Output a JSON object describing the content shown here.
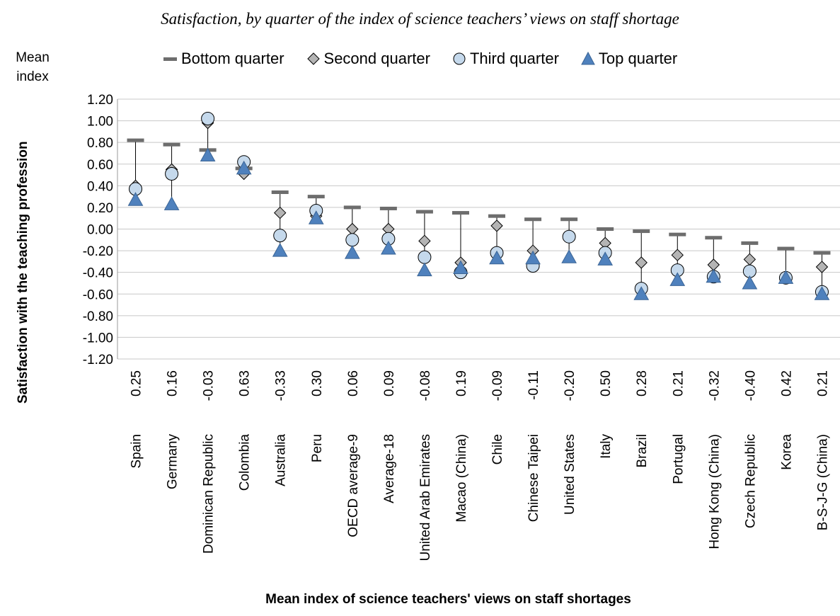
{
  "chart_data": {
    "type": "scatter",
    "title": "Satisfaction, by quarter of the index of science teachers’ views on staff shortage",
    "unit_label_line1": "Mean",
    "unit_label_line2": "index",
    "ylabel": "Satisfaction with the teaching profession",
    "xlabel": "Mean index of science teachers' views on staff shortages",
    "ylim": [
      -1.2,
      1.2
    ],
    "yticks": [
      "1.20",
      "1.00",
      "0.80",
      "0.60",
      "0.40",
      "0.20",
      "0.00",
      "-0.20",
      "-0.40",
      "-0.60",
      "-0.80",
      "-1.00",
      "-1.20"
    ],
    "grid": true,
    "legend_position": "top",
    "categories": [
      "Spain",
      "Germany",
      "Dominican Republic",
      "Colombia",
      "Australia",
      "Peru",
      "OECD average-9",
      "Average-18",
      "United Arab Emirates",
      "Macao (China)",
      "Chile",
      "Chinese Taipei",
      "United States",
      "Italy",
      "Brazil",
      "Portugal",
      "Hong Kong (China)",
      "Czech Republic",
      "Korea",
      "B-S-J-G (China)"
    ],
    "category_means": [
      "0.25",
      "0.16",
      "-0.03",
      "0.63",
      "-0.33",
      "0.30",
      "0.06",
      "0.09",
      "-0.08",
      "0.19",
      "-0.09",
      "-0.11",
      "-0.20",
      "0.50",
      "0.28",
      "0.21",
      "-0.32",
      "-0.40",
      "0.42",
      "0.21"
    ],
    "series": [
      {
        "name": "Bottom quarter",
        "marker": "dash",
        "color": "#6d6d6d",
        "values": [
          0.82,
          0.78,
          0.73,
          0.56,
          0.34,
          0.3,
          0.2,
          0.19,
          0.16,
          0.15,
          0.12,
          0.09,
          0.09,
          0.0,
          -0.02,
          -0.05,
          -0.08,
          -0.13,
          -0.18,
          -0.22
        ]
      },
      {
        "name": "Second quarter",
        "marker": "diamond",
        "color": "#b4b4b4",
        "values": [
          0.4,
          0.55,
          0.98,
          0.51,
          0.15,
          0.12,
          0.0,
          0.0,
          -0.11,
          -0.31,
          0.03,
          -0.2,
          -0.07,
          -0.13,
          -0.31,
          -0.24,
          -0.33,
          -0.28,
          -0.45,
          -0.35
        ]
      },
      {
        "name": "Third quarter",
        "marker": "circle",
        "color": "#c5d9ec",
        "values": [
          0.37,
          0.51,
          1.02,
          0.62,
          -0.06,
          0.17,
          -0.1,
          -0.09,
          -0.26,
          -0.4,
          -0.22,
          -0.34,
          -0.07,
          -0.22,
          -0.55,
          -0.38,
          -0.44,
          -0.39,
          -0.45,
          -0.58
        ]
      },
      {
        "name": "Top  quarter",
        "marker": "triangle",
        "color": "#4f81bd",
        "values": [
          0.27,
          0.23,
          0.68,
          0.56,
          -0.2,
          0.1,
          -0.22,
          -0.18,
          -0.38,
          -0.36,
          -0.27,
          -0.27,
          -0.26,
          -0.28,
          -0.6,
          -0.47,
          -0.44,
          -0.5,
          -0.45,
          -0.6
        ]
      }
    ]
  }
}
